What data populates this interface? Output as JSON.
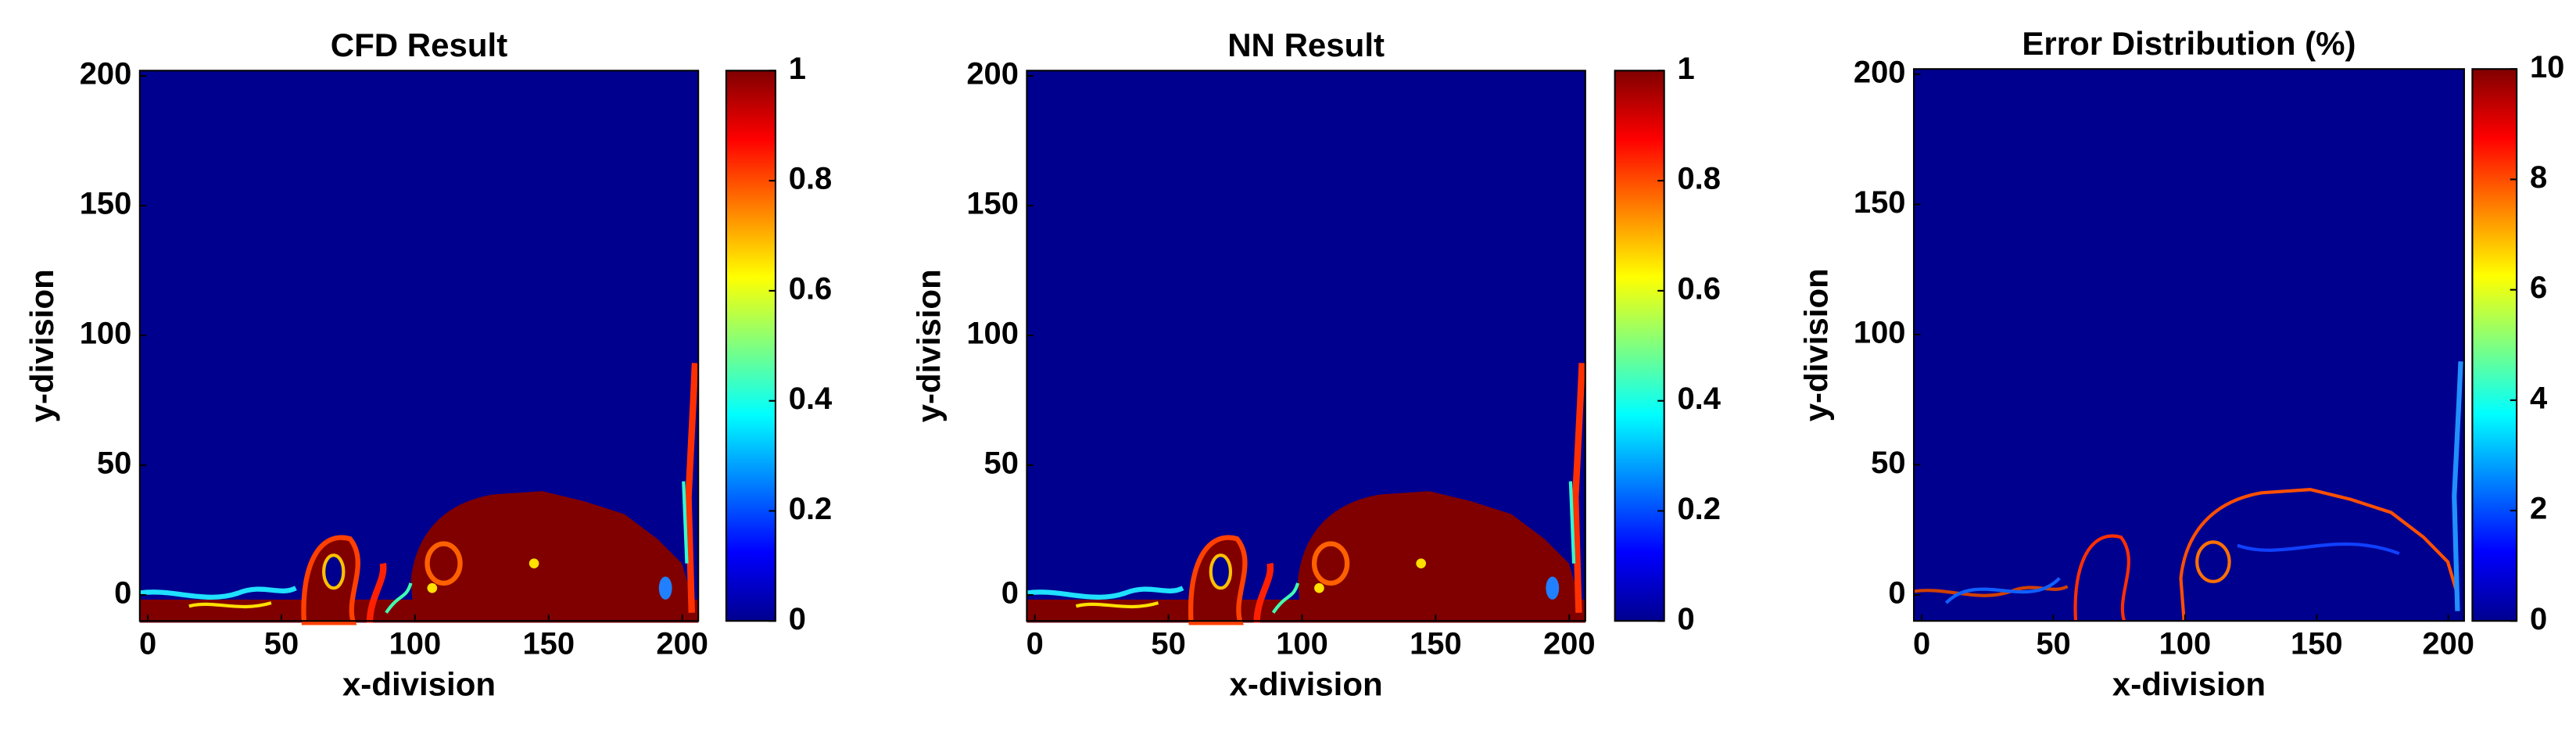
{
  "chart_data": [
    {
      "type": "heatmap",
      "title": "CFD Result",
      "xlabel": "x-division",
      "ylabel": "y-division",
      "xlim": [
        -3,
        206
      ],
      "ylim": [
        -10,
        202
      ],
      "xticks": [
        0,
        50,
        100,
        150,
        200
      ],
      "yticks": [
        0,
        50,
        100,
        150,
        200
      ],
      "colorbar": {
        "colormap": "jet",
        "lim": [
          0,
          1
        ],
        "ticks": [
          0,
          0.2,
          0.4,
          0.6,
          0.8,
          1
        ]
      }
    },
    {
      "type": "heatmap",
      "title": "NN Result",
      "xlabel": "x-division",
      "ylabel": "y-division",
      "xlim": [
        -3,
        206
      ],
      "ylim": [
        -10,
        202
      ],
      "xticks": [
        0,
        50,
        100,
        150,
        200
      ],
      "yticks": [
        0,
        50,
        100,
        150,
        200
      ],
      "colorbar": {
        "colormap": "jet",
        "lim": [
          0,
          1
        ],
        "ticks": [
          0,
          0.2,
          0.4,
          0.6,
          0.8,
          1
        ]
      }
    },
    {
      "type": "heatmap",
      "title": "Error Distribution (%)",
      "xlabel": "x-division",
      "ylabel": "y-division",
      "xlim": [
        -3,
        206
      ],
      "ylim": [
        -10,
        202
      ],
      "xticks": [
        0,
        50,
        100,
        150,
        200
      ],
      "yticks": [
        0,
        50,
        100,
        150,
        200
      ],
      "colorbar": {
        "colormap": "jet",
        "lim": [
          0,
          10
        ],
        "ticks": [
          0,
          2,
          4,
          6,
          8,
          10
        ]
      }
    }
  ]
}
